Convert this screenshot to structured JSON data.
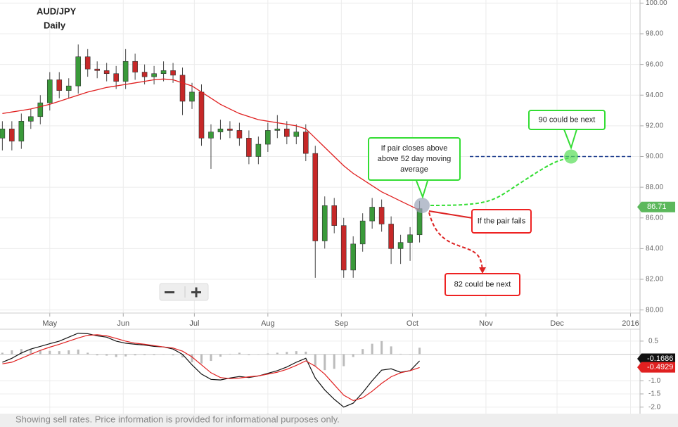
{
  "chart_data": {
    "type": "candlestick",
    "title": "AUD/JPY",
    "subtitle": "Daily",
    "x": [
      -20,
      -16,
      -12,
      -8,
      -4,
      0,
      4,
      8,
      12,
      16,
      20,
      24,
      28,
      32,
      36,
      40,
      44,
      48,
      52,
      56,
      60,
      64,
      68,
      72,
      76,
      80,
      84,
      88,
      92,
      96,
      100,
      104,
      108,
      112,
      116,
      120,
      124,
      128,
      132,
      136,
      140,
      144,
      148,
      152,
      156
    ],
    "open": [
      91.2,
      91.8,
      91.0,
      92.3,
      92.6,
      93.5,
      95.0,
      94.3,
      94.6,
      96.5,
      95.7,
      95.6,
      95.4,
      94.9,
      96.2,
      95.5,
      95.2,
      95.4,
      95.6,
      95.3,
      93.6,
      94.2,
      91.2,
      91.6,
      91.8,
      91.7,
      91.2,
      90.0,
      90.8,
      91.7,
      91.8,
      91.3,
      91.6,
      90.2,
      84.5,
      86.8,
      85.5,
      82.6,
      84.3,
      85.8,
      86.7,
      85.6,
      84.0,
      84.4,
      84.9
    ],
    "high": [
      92.3,
      92.3,
      92.8,
      93.1,
      94.0,
      95.5,
      95.5,
      95.1,
      97.3,
      97.0,
      96.2,
      96.1,
      95.9,
      97.0,
      96.7,
      96.0,
      95.9,
      96.2,
      96.1,
      95.8,
      94.8,
      94.7,
      92.1,
      92.4,
      92.3,
      92.2,
      91.7,
      91.3,
      92.2,
      92.7,
      92.3,
      92.1,
      92.1,
      90.7,
      87.4,
      87.3,
      86.0,
      84.8,
      86.3,
      87.3,
      87.2,
      86.1,
      84.9,
      85.4,
      87.1
    ],
    "low": [
      90.4,
      90.4,
      90.5,
      91.8,
      92.1,
      93.0,
      93.8,
      93.8,
      94.1,
      95.2,
      95.1,
      94.9,
      94.4,
      94.4,
      95.0,
      94.7,
      94.7,
      94.9,
      94.8,
      92.7,
      93.1,
      90.7,
      89.2,
      91.1,
      91.2,
      90.7,
      89.5,
      89.5,
      90.3,
      91.2,
      90.8,
      90.8,
      89.7,
      82.1,
      84.0,
      85.0,
      82.1,
      82.1,
      83.8,
      85.3,
      85.1,
      83.0,
      83.0,
      83.2,
      84.4
    ],
    "close": [
      91.8,
      91.0,
      92.3,
      92.6,
      93.5,
      95.0,
      94.3,
      94.6,
      96.5,
      95.7,
      95.6,
      95.4,
      94.9,
      96.2,
      95.5,
      95.2,
      95.4,
      95.6,
      95.3,
      93.6,
      94.2,
      91.2,
      91.6,
      91.8,
      91.7,
      91.2,
      90.0,
      90.8,
      91.7,
      91.8,
      91.3,
      91.6,
      90.2,
      84.5,
      86.8,
      85.5,
      82.6,
      84.3,
      85.8,
      86.7,
      85.6,
      84.0,
      84.4,
      84.9,
      86.6
    ],
    "up_color": "#3a9a3a",
    "down_color": "#c62828",
    "series": [
      {
        "color": "#e02020",
        "values": [
          92.8,
          92.9,
          93.0,
          93.1,
          93.25,
          93.4,
          93.6,
          93.8,
          94.0,
          94.2,
          94.35,
          94.5,
          94.6,
          94.7,
          94.8,
          94.9,
          95.0,
          95.05,
          95.0,
          94.8,
          94.6,
          94.2,
          93.8,
          93.4,
          93.1,
          92.8,
          92.6,
          92.4,
          92.3,
          92.2,
          92.1,
          92.0,
          91.8,
          91.2,
          90.6,
          90.0,
          89.4,
          88.9,
          88.5,
          88.1,
          87.7,
          87.4,
          87.1,
          86.8,
          86.5
        ]
      }
    ],
    "xlim": [
      -21,
      249
    ],
    "xticks": [
      {
        "value": 0,
        "label": "May"
      },
      {
        "value": 31,
        "label": "Jun"
      },
      {
        "value": 61,
        "label": "Jul"
      },
      {
        "value": 92,
        "label": "Aug"
      },
      {
        "value": 123,
        "label": "Sep"
      },
      {
        "value": 153,
        "label": "Oct"
      },
      {
        "value": 184,
        "label": "Nov"
      },
      {
        "value": 214,
        "label": "Dec"
      },
      {
        "value": 245,
        "label": "2016"
      }
    ],
    "ylim": [
      79.8,
      100.2
    ],
    "yticks": [
      {
        "value": 80,
        "label": "80.00"
      },
      {
        "value": 82,
        "label": "82.00"
      },
      {
        "value": 84,
        "label": "84.00"
      },
      {
        "value": 86,
        "label": "86.00"
      },
      {
        "value": 88,
        "label": "88.00"
      },
      {
        "value": 90,
        "label": "90.00"
      },
      {
        "value": 92,
        "label": "92.00"
      },
      {
        "value": 94,
        "label": "94.00"
      },
      {
        "value": 96,
        "label": "96.00"
      },
      {
        "value": 98,
        "label": "98.00"
      },
      {
        "value": 100,
        "label": "100.00"
      }
    ],
    "grid": true,
    "last_price": 86.71,
    "last_price_color": "#5cb85c",
    "target_level": 90,
    "annotations": [
      {
        "lines": [
          "If pair closes above",
          "above 52 day moving",
          "average"
        ],
        "color": "#33dd33"
      },
      {
        "lines": [
          "90 could be next"
        ],
        "color": "#33dd33"
      },
      {
        "lines": [
          "If the pair fails"
        ],
        "color": "#ee2222"
      },
      {
        "lines": [
          "82 could be next"
        ],
        "color": "#ee2222"
      }
    ],
    "indicator": {
      "type": "line",
      "series": [
        {
          "color": "#111111",
          "values": [
            -0.3,
            -0.15,
            0.05,
            0.2,
            0.3,
            0.4,
            0.5,
            0.65,
            0.8,
            0.78,
            0.7,
            0.65,
            0.5,
            0.42,
            0.38,
            0.35,
            0.3,
            0.28,
            0.2,
            0.0,
            -0.4,
            -0.75,
            -0.95,
            -0.97,
            -0.9,
            -0.84,
            -0.88,
            -0.82,
            -0.72,
            -0.62,
            -0.48,
            -0.3,
            -0.15,
            -0.9,
            -1.35,
            -1.7,
            -2.0,
            -1.85,
            -1.45,
            -1.0,
            -0.6,
            -0.55,
            -0.68,
            -0.62,
            -0.25
          ],
          "last": -0.1686
        },
        {
          "color": "#e02020",
          "values": [
            -0.36,
            -0.3,
            -0.15,
            0.0,
            0.15,
            0.27,
            0.38,
            0.5,
            0.62,
            0.72,
            0.74,
            0.7,
            0.6,
            0.5,
            0.42,
            0.38,
            0.33,
            0.28,
            0.24,
            0.12,
            -0.1,
            -0.4,
            -0.7,
            -0.88,
            -0.92,
            -0.9,
            -0.85,
            -0.82,
            -0.75,
            -0.68,
            -0.57,
            -0.42,
            -0.25,
            -0.45,
            -0.75,
            -1.15,
            -1.55,
            -1.75,
            -1.65,
            -1.4,
            -1.1,
            -0.85,
            -0.7,
            -0.62,
            -0.5
          ],
          "last": -0.4929
        }
      ],
      "histogram": [
        0.06,
        0.15,
        0.2,
        0.2,
        0.15,
        0.13,
        0.12,
        0.15,
        0.18,
        0.06,
        -0.04,
        -0.05,
        -0.1,
        -0.08,
        -0.04,
        -0.03,
        -0.03,
        0,
        -0.04,
        -0.12,
        -0.3,
        -0.35,
        -0.25,
        -0.09,
        0.02,
        0.06,
        -0.03,
        0,
        0.03,
        0.06,
        0.09,
        0.12,
        0.1,
        -0.45,
        -0.6,
        -0.55,
        -0.45,
        -0.1,
        0.2,
        0.4,
        0.5,
        0.3,
        0.02,
        0,
        0.25
      ],
      "histogram_color": "#bbbbbb",
      "ylim": [
        -2.3,
        0.95
      ],
      "yticks": [
        0.5,
        {
          "value": -1,
          "label": "-1.0"
        },
        {
          "value": -1.5,
          "label": "-1.5"
        },
        {
          "value": -2,
          "label": "-2.0"
        }
      ]
    },
    "footer": "Showing sell rates. Price information is provided for informational purposes only."
  }
}
